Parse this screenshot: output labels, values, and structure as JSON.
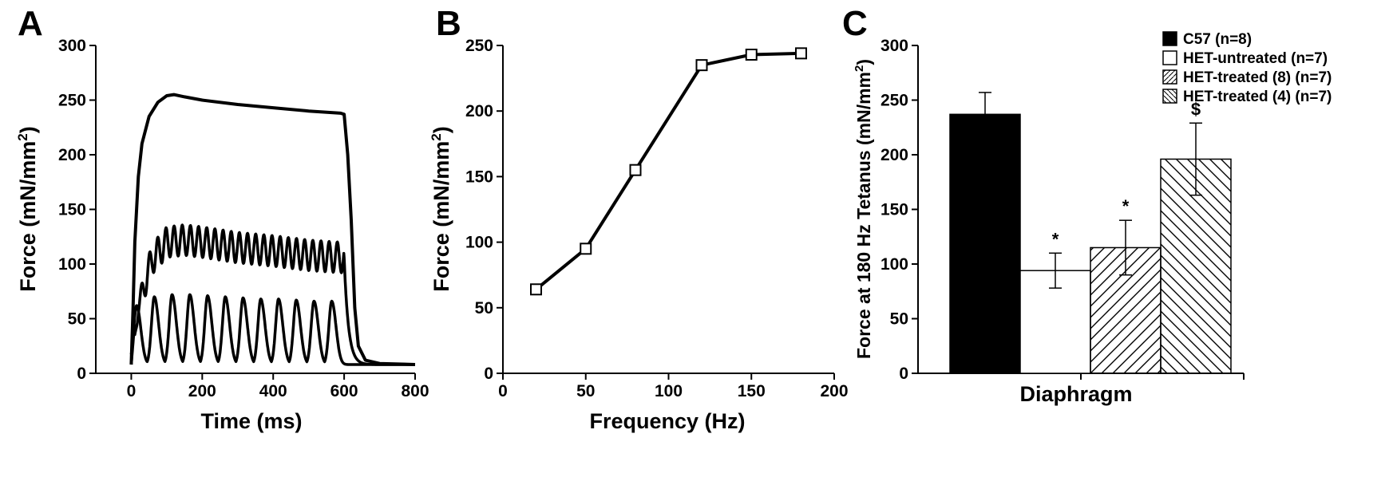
{
  "figure": {
    "panels": [
      "A",
      "B",
      "C"
    ]
  },
  "chart_data": [
    {
      "panel": "A",
      "type": "line",
      "xlabel": "Time (ms)",
      "ylabel": "Force (mN/mm",
      "ylabel_sup": "2",
      "ylabel_end": ")",
      "xlim": [
        -100,
        800
      ],
      "ylim": [
        0,
        300
      ],
      "xticks": [
        0,
        200,
        400,
        600,
        800
      ],
      "yticks": [
        0,
        50,
        100,
        150,
        200,
        250,
        300
      ],
      "grid": false,
      "series": [
        {
          "points": [
            [
              0,
              8
            ],
            [
              5,
              60
            ],
            [
              10,
              120
            ],
            [
              20,
              180
            ],
            [
              30,
              210
            ],
            [
              50,
              235
            ],
            [
              75,
              248
            ],
            [
              100,
              254
            ],
            [
              120,
              255
            ],
            [
              150,
              253
            ],
            [
              200,
              250
            ],
            [
              300,
              246
            ],
            [
              400,
              243
            ],
            [
              500,
              240
            ],
            [
              590,
              238
            ],
            [
              600,
              237
            ],
            [
              610,
              200
            ],
            [
              620,
              140
            ],
            [
              630,
              60
            ],
            [
              640,
              25
            ],
            [
              660,
              12
            ],
            [
              700,
              9
            ],
            [
              800,
              8
            ]
          ]
        },
        {
          "period_ms": 23,
          "envelope": [
            [
              0,
              8
            ],
            [
              20,
              60
            ],
            [
              40,
              85
            ],
            [
              60,
              105
            ],
            [
              100,
              120
            ],
            [
              150,
              122
            ],
            [
              200,
              120
            ],
            [
              300,
              115
            ],
            [
              400,
              112
            ],
            [
              500,
              108
            ],
            [
              590,
              106
            ]
          ],
          "amplitude": 14,
          "decay_after_ms": 600
        },
        {
          "period_ms": 50,
          "first_peak_ms": 15,
          "peaks": [
            62,
            70,
            72,
            72,
            71,
            70,
            69,
            68,
            68,
            67,
            66,
            66
          ]
        }
      ]
    },
    {
      "panel": "B",
      "type": "line",
      "xlabel": "Frequency (Hz)",
      "ylabel": "Force (mN/mm",
      "ylabel_sup": "2",
      "ylabel_end": ")",
      "xlim": [
        0,
        200
      ],
      "ylim": [
        0,
        250
      ],
      "xticks": [
        0,
        50,
        100,
        150,
        200
      ],
      "yticks": [
        0,
        50,
        100,
        150,
        200,
        250
      ],
      "grid": false,
      "marker": "open-square",
      "series": [
        {
          "x": [
            20,
            50,
            80,
            120,
            150,
            180
          ],
          "y": [
            64,
            95,
            155,
            235,
            243,
            244
          ]
        }
      ]
    },
    {
      "panel": "C",
      "type": "bar",
      "xlabel": "Diaphragm",
      "ylabel": "Force at 180 Hz Tetanus (mN/mm",
      "ylabel_sup": "2",
      "ylabel_end": ")",
      "ylim": [
        0,
        300
      ],
      "yticks": [
        0,
        50,
        100,
        150,
        200,
        250,
        300
      ],
      "grid": false,
      "legend_position": "top-right",
      "series": [
        {
          "name": "C57 (n=8)",
          "value": 237,
          "error": 20,
          "fill": "solid-black",
          "sig": ""
        },
        {
          "name": "HET-untreated (n=7)",
          "value": 94,
          "error": 16,
          "fill": "white",
          "sig": "*"
        },
        {
          "name": "HET-treated (8) (n=7)",
          "value": 115,
          "error": 25,
          "fill": "hatch-forward",
          "sig": "*"
        },
        {
          "name": "HET-treated (4) (n=7)",
          "value": 196,
          "error": 33,
          "fill": "hatch-back",
          "sig": "$"
        }
      ]
    }
  ]
}
